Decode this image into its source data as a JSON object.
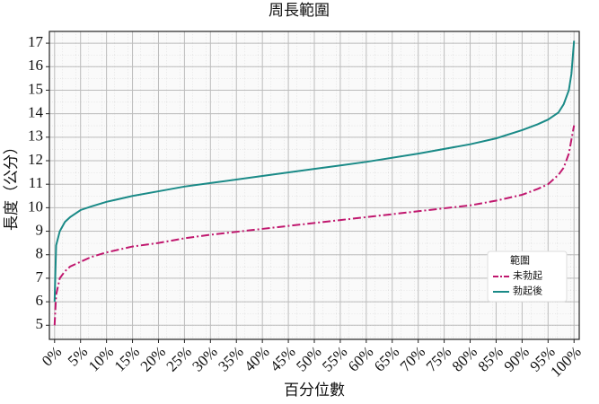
{
  "chart_data": {
    "type": "line",
    "title": "周長範圍",
    "x_label": "百分位數",
    "y_label": "長度（公分）",
    "legend_title": "範圍",
    "legend_loc": "lower right",
    "grid": true,
    "x": [
      0,
      0.3,
      1,
      2,
      3,
      5,
      7,
      10,
      15,
      20,
      25,
      30,
      40,
      50,
      60,
      70,
      80,
      85,
      90,
      93,
      95,
      97,
      98,
      99,
      99.5,
      100
    ],
    "series": [
      {
        "name": "未勃起",
        "color": "#c0176e",
        "dash": "9,3,2,3",
        "values": [
          5.0,
          6.3,
          7.0,
          7.3,
          7.5,
          7.7,
          7.9,
          8.1,
          8.35,
          8.5,
          8.7,
          8.85,
          9.1,
          9.35,
          9.6,
          9.85,
          10.1,
          10.3,
          10.55,
          10.8,
          11.0,
          11.4,
          11.7,
          12.3,
          12.9,
          13.5
        ]
      },
      {
        "name": "勃起後",
        "color": "#1a8a87",
        "values": [
          6.0,
          8.4,
          9.0,
          9.4,
          9.6,
          9.9,
          10.05,
          10.25,
          10.5,
          10.7,
          10.9,
          11.05,
          11.35,
          11.65,
          11.95,
          12.3,
          12.7,
          12.95,
          13.3,
          13.55,
          13.75,
          14.05,
          14.4,
          15.0,
          15.7,
          17.1
        ]
      }
    ],
    "xlim": [
      -1,
      101
    ],
    "ylim": [
      4.4,
      17.5
    ],
    "xticks": [
      {
        "value": 0,
        "label": "0%"
      },
      {
        "value": 5,
        "label": "5%"
      },
      {
        "value": 10,
        "label": "10%"
      },
      {
        "value": 15,
        "label": "15%"
      },
      {
        "value": 20,
        "label": "20%"
      },
      {
        "value": 25,
        "label": "25%"
      },
      {
        "value": 30,
        "label": "30%"
      },
      {
        "value": 35,
        "label": "35%"
      },
      {
        "value": 40,
        "label": "40%"
      },
      {
        "value": 45,
        "label": "45%"
      },
      {
        "value": 50,
        "label": "50%"
      },
      {
        "value": 55,
        "label": "55%"
      },
      {
        "value": 60,
        "label": "60%"
      },
      {
        "value": 65,
        "label": "65%"
      },
      {
        "value": 70,
        "label": "70%"
      },
      {
        "value": 75,
        "label": "75%"
      },
      {
        "value": 80,
        "label": "80%"
      },
      {
        "value": 85,
        "label": "85%"
      },
      {
        "value": 90,
        "label": "90%"
      },
      {
        "value": 95,
        "label": "95%"
      },
      {
        "value": 100,
        "label": "100%"
      }
    ],
    "yticks": [
      5,
      6,
      7,
      8,
      9,
      10,
      11,
      12,
      13,
      14,
      15,
      16,
      17
    ]
  }
}
